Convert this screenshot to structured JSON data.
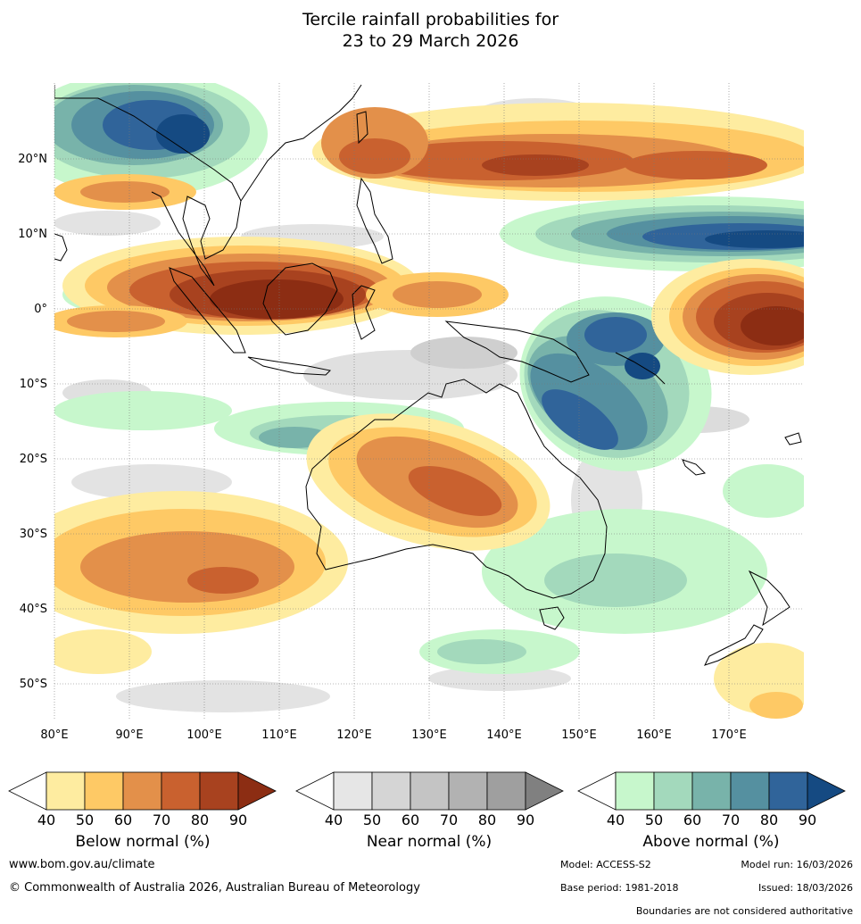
{
  "title": {
    "line1": "Tercile rainfall probabilities for",
    "line2": "23 to 29 March 2026"
  },
  "map": {
    "lon_ticks": [
      "80°E",
      "90°E",
      "100°E",
      "110°E",
      "120°E",
      "130°E",
      "140°E",
      "150°E",
      "160°E",
      "170°E"
    ],
    "lat_ticks": [
      "20°N",
      "10°N",
      "0°",
      "10°S",
      "20°S",
      "30°S",
      "40°S",
      "50°S"
    ]
  },
  "legends": [
    {
      "label": "Below normal (%)",
      "ticks": [
        "40",
        "50",
        "60",
        "70",
        "80",
        "90"
      ],
      "colors": [
        "#ffffff",
        "#feeca0",
        "#fec965",
        "#e3904a",
        "#c9612f",
        "#a8421f",
        "#8c2d13"
      ]
    },
    {
      "label": "Near normal (%)",
      "ticks": [
        "40",
        "50",
        "60",
        "70",
        "80",
        "90"
      ],
      "colors": [
        "#ffffff",
        "#e6e6e6",
        "#d5d5d5",
        "#c4c4c4",
        "#b2b2b2",
        "#9f9f9f",
        "#808080"
      ]
    },
    {
      "label": "Above normal (%)",
      "ticks": [
        "40",
        "50",
        "60",
        "70",
        "80",
        "90"
      ],
      "colors": [
        "#ffffff",
        "#c7f7cc",
        "#a3d9bc",
        "#78b3aa",
        "#5590a0",
        "#30649a",
        "#154a82"
      ]
    }
  ],
  "footer": {
    "website": "www.bom.gov.au/climate",
    "copyright": "© Commonwealth of Australia 2026, Australian Bureau of Meteorology",
    "model": "Model: ACCESS-S2",
    "model_run": "Model run: 16/03/2026",
    "base_period": "Base period: 1981-2018",
    "issued": "Issued: 18/03/2026",
    "disclaimer": "Boundaries are not considered authoritative"
  }
}
